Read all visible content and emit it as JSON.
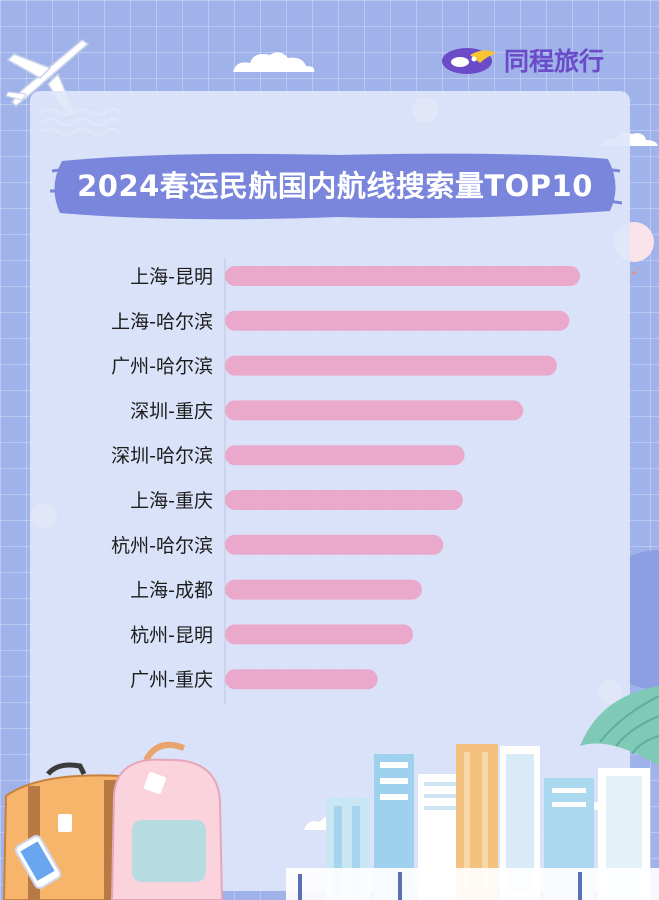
{
  "brand": {
    "name": "同程旅行",
    "accent_color": "#6b4bc8",
    "logo_icon": "tongcheng-bird-logo-icon"
  },
  "chart_data": {
    "type": "bar",
    "orientation": "horizontal",
    "title": "2024春运民航国内航线搜索量TOP10",
    "categories": [
      "上海-昆明",
      "上海-哈尔滨",
      "广州-哈尔滨",
      "深圳-重庆",
      "深圳-哈尔滨",
      "上海-重庆",
      "杭州-哈尔滨",
      "上海-成都",
      "杭州-昆明",
      "广州-重庆"
    ],
    "values": [
      100,
      97,
      93.5,
      84,
      67.5,
      67,
      61.5,
      55.5,
      53,
      43
    ],
    "xlim": [
      0,
      100
    ],
    "grid": false,
    "bar_color": "#eaa9cb",
    "axis_labels_shown": false
  },
  "decorations": [
    "airplane-icon",
    "wave-icon",
    "cloud-icon",
    "bubble-icon",
    "suitcase-icon",
    "backpack-icon",
    "phone-icon",
    "city-skyline-icon",
    "palm-leaf-icon"
  ]
}
